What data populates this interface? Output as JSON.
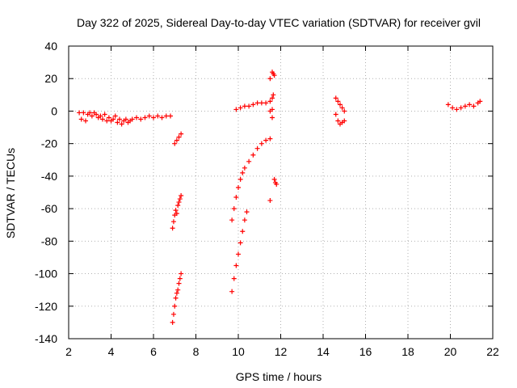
{
  "chart_data": {
    "type": "scatter",
    "title": "Day 322 of 2025, Sidereal Day-to-day VTEC variation (SDTVAR) for receiver gvil",
    "xlabel": "GPS time / hours",
    "ylabel": "SDTVAR / TECUs",
    "xlim": [
      2,
      22
    ],
    "ylim": [
      -140,
      40
    ],
    "x_ticks": [
      "2",
      "4",
      "6",
      "8",
      "10",
      "12",
      "14",
      "16",
      "18",
      "20",
      "22"
    ],
    "y_ticks": [
      "40",
      "20",
      "0",
      "-20",
      "-40",
      "-60",
      "-80",
      "-100",
      "-120",
      "-140"
    ],
    "grid": true,
    "marker": "+",
    "series": [
      {
        "color": "#ff0000",
        "points": [
          [
            2.5,
            -1
          ],
          [
            2.6,
            -5
          ],
          [
            2.7,
            -1
          ],
          [
            2.8,
            -6
          ],
          [
            2.9,
            -2
          ],
          [
            3.0,
            -1
          ],
          [
            3.1,
            -3
          ],
          [
            3.2,
            -1
          ],
          [
            3.3,
            -2
          ],
          [
            3.4,
            -4
          ],
          [
            3.5,
            -3
          ],
          [
            3.6,
            -5
          ],
          [
            3.7,
            -2
          ],
          [
            3.8,
            -6
          ],
          [
            3.9,
            -4
          ],
          [
            4.0,
            -6
          ],
          [
            4.1,
            -5
          ],
          [
            4.2,
            -3
          ],
          [
            4.3,
            -7
          ],
          [
            4.4,
            -5
          ],
          [
            4.5,
            -8
          ],
          [
            4.6,
            -6
          ],
          [
            4.7,
            -5
          ],
          [
            4.8,
            -7
          ],
          [
            4.9,
            -6
          ],
          [
            5.0,
            -5
          ],
          [
            5.2,
            -4
          ],
          [
            5.4,
            -5
          ],
          [
            5.6,
            -4
          ],
          [
            5.8,
            -3
          ],
          [
            6.0,
            -4
          ],
          [
            6.2,
            -3
          ],
          [
            6.4,
            -4
          ],
          [
            6.6,
            -3
          ],
          [
            6.8,
            -3
          ],
          [
            6.9,
            -72
          ],
          [
            6.95,
            -68
          ],
          [
            7.0,
            -64
          ],
          [
            7.05,
            -61
          ],
          [
            7.1,
            -63
          ],
          [
            7.15,
            -58
          ],
          [
            7.2,
            -56
          ],
          [
            7.25,
            -54
          ],
          [
            7.3,
            -52
          ],
          [
            6.9,
            -130
          ],
          [
            6.95,
            -125
          ],
          [
            7.0,
            -120
          ],
          [
            7.05,
            -115
          ],
          [
            7.1,
            -112
          ],
          [
            7.15,
            -110
          ],
          [
            7.2,
            -106
          ],
          [
            7.25,
            -103
          ],
          [
            7.3,
            -100
          ],
          [
            7.0,
            -20
          ],
          [
            7.1,
            -18
          ],
          [
            7.2,
            -16
          ],
          [
            7.3,
            -14
          ],
          [
            9.7,
            -67
          ],
          [
            9.8,
            -60
          ],
          [
            9.9,
            -53
          ],
          [
            10.0,
            -47
          ],
          [
            10.1,
            -42
          ],
          [
            10.2,
            -38
          ],
          [
            10.3,
            -35
          ],
          [
            10.5,
            -31
          ],
          [
            10.7,
            -27
          ],
          [
            10.9,
            -23
          ],
          [
            11.1,
            -20
          ],
          [
            11.3,
            -18
          ],
          [
            11.5,
            -17
          ],
          [
            9.7,
            -111
          ],
          [
            9.8,
            -103
          ],
          [
            9.9,
            -95
          ],
          [
            10.0,
            -88
          ],
          [
            10.1,
            -81
          ],
          [
            10.2,
            -74
          ],
          [
            10.3,
            -67
          ],
          [
            10.4,
            -62
          ],
          [
            9.9,
            1
          ],
          [
            10.1,
            2
          ],
          [
            10.3,
            3
          ],
          [
            10.5,
            3
          ],
          [
            10.7,
            4
          ],
          [
            10.9,
            5
          ],
          [
            11.1,
            5
          ],
          [
            11.3,
            5
          ],
          [
            11.5,
            6
          ],
          [
            11.6,
            24
          ],
          [
            11.65,
            23
          ],
          [
            11.7,
            22
          ],
          [
            11.5,
            20
          ],
          [
            11.6,
            8
          ],
          [
            11.65,
            10
          ],
          [
            11.6,
            1
          ],
          [
            11.5,
            0
          ],
          [
            11.6,
            -4
          ],
          [
            11.7,
            -42
          ],
          [
            11.75,
            -44
          ],
          [
            11.8,
            -45
          ],
          [
            11.5,
            -55
          ],
          [
            14.6,
            8
          ],
          [
            14.7,
            6
          ],
          [
            14.8,
            4
          ],
          [
            14.9,
            2
          ],
          [
            15.0,
            0
          ],
          [
            14.6,
            -2
          ],
          [
            14.7,
            -6
          ],
          [
            14.8,
            -8
          ],
          [
            14.9,
            -7
          ],
          [
            15.0,
            -6
          ],
          [
            19.9,
            4
          ],
          [
            20.1,
            2
          ],
          [
            20.3,
            1
          ],
          [
            20.5,
            2
          ],
          [
            20.7,
            3
          ],
          [
            20.9,
            4
          ],
          [
            21.1,
            3
          ],
          [
            21.3,
            5
          ],
          [
            21.4,
            6
          ]
        ]
      }
    ]
  }
}
